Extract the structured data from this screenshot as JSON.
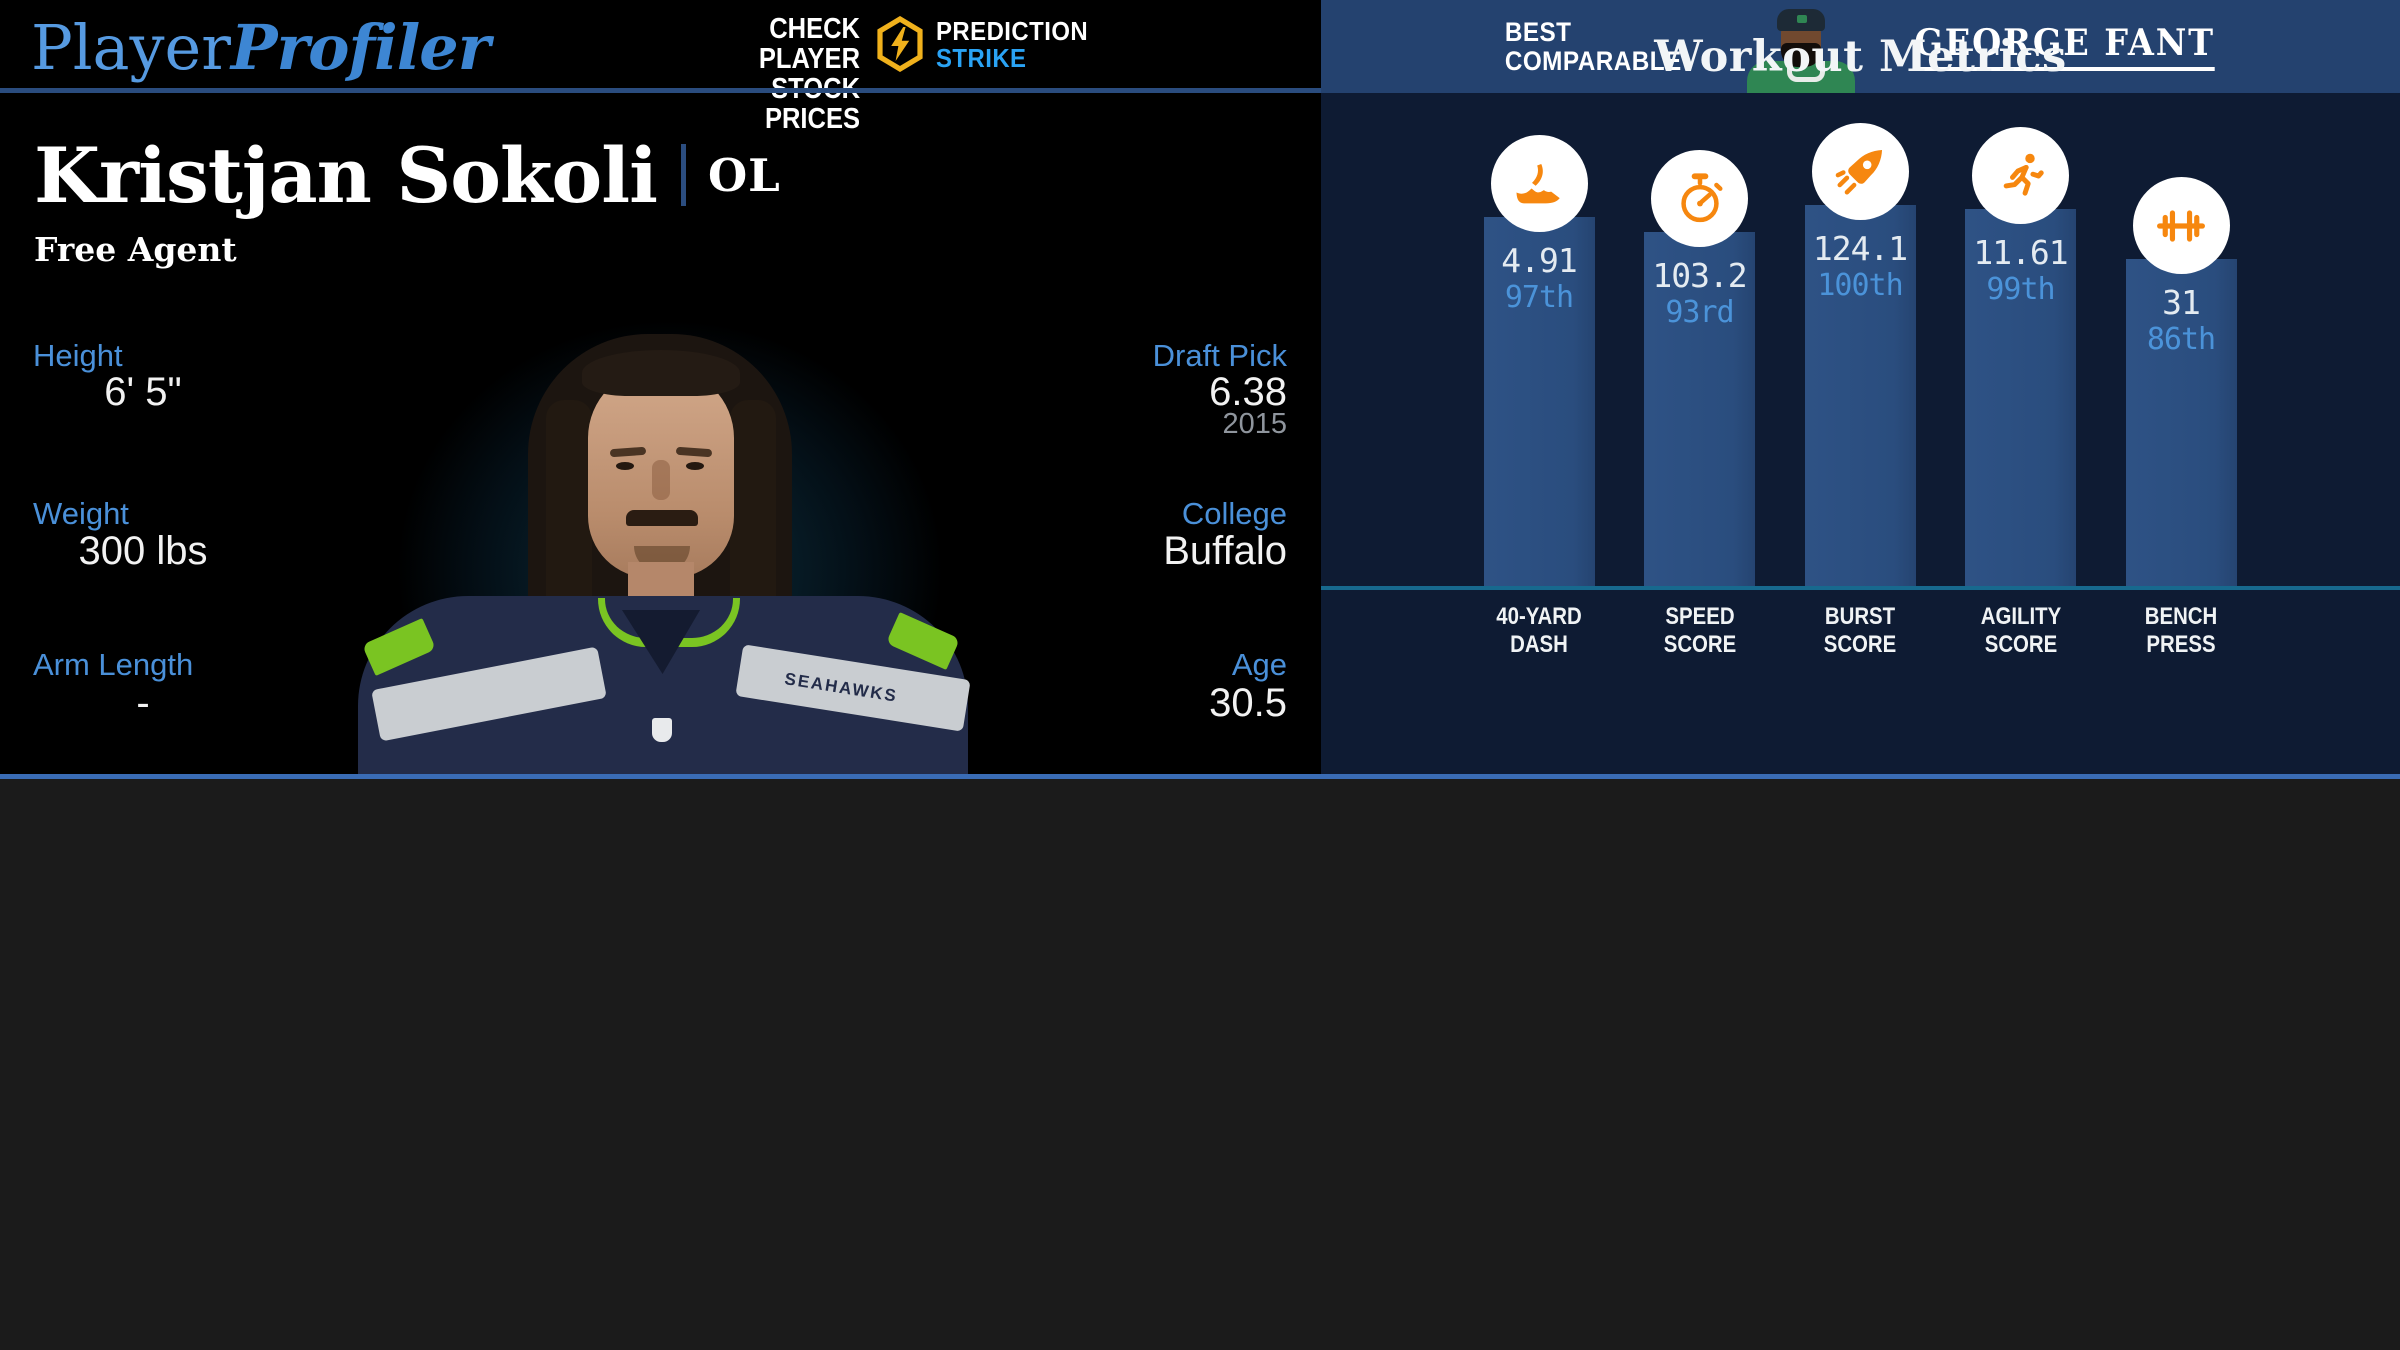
{
  "header": {
    "logo": {
      "player": "Player",
      "profiler": "Profiler"
    },
    "stock_cta": {
      "line1": "CHECK PLAYER",
      "line2": "STOCK PRICES"
    },
    "prediction": {
      "top": "PREDICTION",
      "bottom": "STRIKE"
    }
  },
  "comparable": {
    "label_line1": "BEST",
    "label_line2": "COMPARABLE",
    "player_name": "GEORGE FANT"
  },
  "player": {
    "name": "Kristjan Sokoli",
    "position": "OL",
    "status": "Free Agent",
    "jersey_text": "SEAHAWKS",
    "stats_left": [
      {
        "label": "Height",
        "value": "6' 5\""
      },
      {
        "label": "Weight",
        "value": "300 lbs"
      },
      {
        "label": "Arm Length",
        "value": "-"
      }
    ],
    "stats_right": [
      {
        "label": "Draft Pick",
        "value": "6.38",
        "sub": "2015"
      },
      {
        "label": "College",
        "value": "Buffalo",
        "sub": ""
      },
      {
        "label": "Age",
        "value": "30.5",
        "sub": ""
      }
    ]
  },
  "chart_data": {
    "type": "bar",
    "title": "Workout Metrics",
    "categories": [
      "40-Yard Dash",
      "Speed Score",
      "Burst Score",
      "Agility Score",
      "Bench Press"
    ],
    "values": [
      4.91,
      103.2,
      124.1,
      11.61,
      31
    ],
    "percentiles": [
      97,
      93,
      100,
      99,
      86
    ],
    "ylabel": "percentile",
    "ylim": [
      0,
      100
    ],
    "legend": "none",
    "grid": "off",
    "metrics": [
      {
        "label_line1": "40-YARD",
        "label_line2": "DASH",
        "value": "4.91",
        "percentile": 97,
        "percentile_label": "97th",
        "icon": "shoe-icon"
      },
      {
        "label_line1": "SPEED",
        "label_line2": "SCORE",
        "value": "103.2",
        "percentile": 93,
        "percentile_label": "93rd",
        "icon": "stopwatch-icon"
      },
      {
        "label_line1": "BURST",
        "label_line2": "SCORE",
        "value": "124.1",
        "percentile": 100,
        "percentile_label": "100th",
        "icon": "rocket-icon"
      },
      {
        "label_line1": "AGILITY",
        "label_line2": "SCORE",
        "value": "11.61",
        "percentile": 99,
        "percentile_label": "99th",
        "icon": "runner-icon"
      },
      {
        "label_line1": "BENCH",
        "label_line2": "PRESS",
        "value": "31",
        "percentile": 86,
        "percentile_label": "86th",
        "icon": "barbell-icon"
      }
    ],
    "colors": {
      "bar": "#2b4e7f",
      "panel_bg": "#0e1b33",
      "baseline": "#17698e",
      "value_text": "#e4ebf1",
      "percentile_text": "#4b93d9",
      "icon_orange": "#f6870f"
    }
  },
  "theme": {
    "accent_blue": "#4a90d9",
    "header_bar_blue": "#24426f",
    "divider_blue": "#3a6cb5",
    "strike_blue": "#2aa3f4",
    "gold": "#f0b11c"
  }
}
